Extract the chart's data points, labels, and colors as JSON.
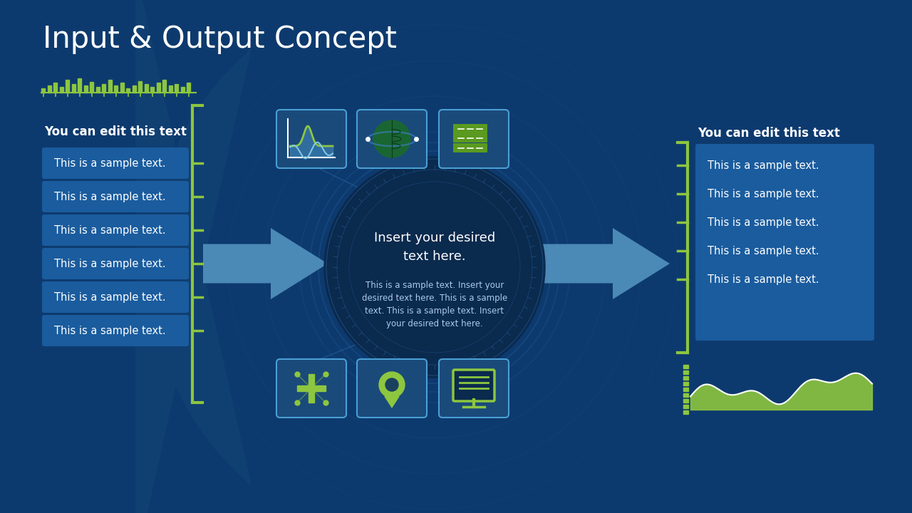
{
  "title": "Input & Output Concept",
  "bg_color": "#0d3a6e",
  "title_color": "#ffffff",
  "title_fontsize": 30,
  "left_heading": "You can edit this text",
  "right_heading": "You can edit this text",
  "sample_texts": [
    "This is a sample text.",
    "This is a sample text.",
    "This is a sample text.",
    "This is a sample text.",
    "This is a sample text.",
    "This is a sample text."
  ],
  "right_texts": [
    "This is a sample text.",
    "This is a sample text.",
    "This is a sample text.",
    "This is a sample text.",
    "This is a sample text."
  ],
  "center_title": "Insert your desired\ntext here.",
  "center_body": "This is a sample text. Insert your\ndesired text here. This is a sample\ntext. This is a sample text. Insert\nyour desired text here.",
  "box_color": "#1a5c9e",
  "box_text_color": "#ffffff",
  "green_color": "#8dc63f",
  "arrow_color": "#5b9ec9",
  "right_box_color": "#1a5c9e",
  "accent_blue": "#3a7fc1",
  "center_circle_color": "#0a2a4e",
  "icon_box_color": "#1a4a7a",
  "icon_border_color": "#4a9fd4",
  "dark_blue": "#0d3a6e"
}
